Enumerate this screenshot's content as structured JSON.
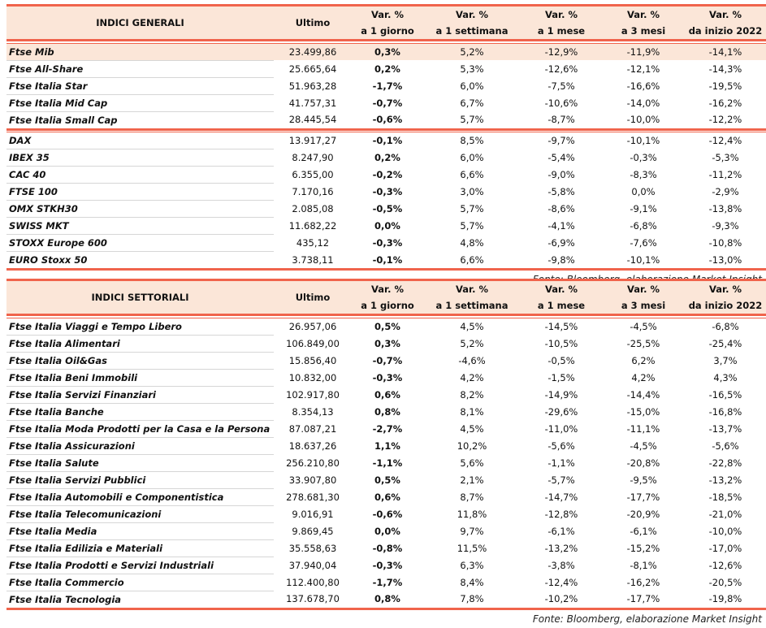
{
  "columns": [
    "Ultimo",
    "Var. %",
    "a 1 giorno",
    "Var. %",
    "a 1 settimana",
    "Var. %",
    "a 1 mese",
    "Var. %",
    "a 3 mesi",
    "Var. %",
    "da inizio 2022"
  ],
  "general": {
    "title": "INDICI GENERALI",
    "groups": [
      [
        [
          "Ftse Mib",
          "23.499,86",
          "0,3%",
          "5,2%",
          "-12,9%",
          "-11,9%",
          "-14,1%"
        ],
        [
          "Ftse All-Share",
          "25.665,64",
          "0,2%",
          "5,3%",
          "-12,6%",
          "-12,1%",
          "-14,3%"
        ],
        [
          "Ftse Italia Star",
          "51.963,28",
          "-1,7%",
          "6,0%",
          "-7,5%",
          "-16,6%",
          "-19,5%"
        ],
        [
          "Ftse Italia Mid Cap",
          "41.757,31",
          "-0,7%",
          "6,7%",
          "-10,6%",
          "-14,0%",
          "-16,2%"
        ],
        [
          "Ftse Italia Small Cap",
          "28.445,54",
          "-0,6%",
          "5,7%",
          "-8,7%",
          "-10,0%",
          "-12,2%"
        ]
      ],
      [
        [
          "DAX",
          "13.917,27",
          "-0,1%",
          "8,5%",
          "-9,7%",
          "-10,1%",
          "-12,4%"
        ],
        [
          "IBEX 35",
          "8.247,90",
          "0,2%",
          "6,0%",
          "-5,4%",
          "-0,3%",
          "-5,3%"
        ],
        [
          "CAC 40",
          "6.355,00",
          "-0,2%",
          "6,6%",
          "-9,0%",
          "-8,3%",
          "-11,2%"
        ],
        [
          "FTSE 100",
          "7.170,16",
          "-0,3%",
          "3,0%",
          "-5,8%",
          "0,0%",
          "-2,9%"
        ],
        [
          "OMX STKH30",
          "2.085,08",
          "-0,5%",
          "5,7%",
          "-8,6%",
          "-9,1%",
          "-13,8%"
        ],
        [
          "SWISS MKT",
          "11.682,22",
          "0,0%",
          "5,7%",
          "-4,1%",
          "-6,8%",
          "-9,3%"
        ],
        [
          "STOXX Europe 600",
          "435,12",
          "-0,3%",
          "4,8%",
          "-6,9%",
          "-7,6%",
          "-10,8%"
        ],
        [
          "EURO Stoxx 50",
          "3.738,11",
          "-0,1%",
          "6,6%",
          "-9,8%",
          "-10,1%",
          "-13,0%"
        ]
      ]
    ],
    "source": "Fonte: Bloomberg, elaborazione Market Insight"
  },
  "sector": {
    "title": "INDICI SETTORIALI",
    "groups": [
      [
        [
          "Ftse Italia Viaggi e Tempo Libero",
          "26.957,06",
          "0,5%",
          "4,5%",
          "-14,5%",
          "-4,5%",
          "-6,8%"
        ],
        [
          "Ftse Italia Alimentari",
          "106.849,00",
          "0,3%",
          "5,2%",
          "-10,5%",
          "-25,5%",
          "-25,4%"
        ],
        [
          "Ftse Italia Oil&Gas",
          "15.856,40",
          "-0,7%",
          "-4,6%",
          "-0,5%",
          "6,2%",
          "3,7%"
        ],
        [
          "Ftse Italia Beni Immobili",
          "10.832,00",
          "-0,3%",
          "4,2%",
          "-1,5%",
          "4,2%",
          "4,3%"
        ],
        [
          "Ftse Italia Servizi Finanziari",
          "102.917,80",
          "0,6%",
          "8,2%",
          "-14,9%",
          "-14,4%",
          "-16,5%"
        ],
        [
          "Ftse Italia Banche",
          "8.354,13",
          "0,8%",
          "8,1%",
          "-29,6%",
          "-15,0%",
          "-16,8%"
        ],
        [
          "Ftse Italia Moda Prodotti per la Casa e la Persona",
          "87.087,21",
          "-2,7%",
          "4,5%",
          "-11,0%",
          "-11,1%",
          "-13,7%"
        ],
        [
          "Ftse Italia Assicurazioni",
          "18.637,26",
          "1,1%",
          "10,2%",
          "-5,6%",
          "-4,5%",
          "-5,6%"
        ],
        [
          "Ftse Italia Salute",
          "256.210,80",
          "-1,1%",
          "5,6%",
          "-1,1%",
          "-20,8%",
          "-22,8%"
        ],
        [
          "Ftse Italia Servizi Pubblici",
          "33.907,80",
          "0,5%",
          "2,1%",
          "-5,7%",
          "-9,5%",
          "-13,2%"
        ],
        [
          "Ftse Italia Automobili e Componentistica",
          "278.681,30",
          "0,6%",
          "8,7%",
          "-14,7%",
          "-17,7%",
          "-18,5%"
        ],
        [
          "Ftse Italia Telecomunicazioni",
          "9.016,91",
          "-0,6%",
          "11,8%",
          "-12,8%",
          "-20,9%",
          "-21,0%"
        ],
        [
          "Ftse Italia Media",
          "9.869,45",
          "0,0%",
          "9,7%",
          "-6,1%",
          "-6,1%",
          "-10,0%"
        ],
        [
          "Ftse Italia Edilizia e Materiali",
          "35.558,63",
          "-0,8%",
          "11,5%",
          "-13,2%",
          "-15,2%",
          "-17,0%"
        ],
        [
          "Ftse Italia Prodotti e Servizi Industriali",
          "37.940,04",
          "-0,3%",
          "6,3%",
          "-3,8%",
          "-8,1%",
          "-12,6%"
        ],
        [
          "Ftse Italia Commercio",
          "112.400,80",
          "-1,7%",
          "8,4%",
          "-12,4%",
          "-16,2%",
          "-20,5%"
        ],
        [
          "Ftse Italia Tecnologia",
          "137.678,70",
          "0,8%",
          "7,8%",
          "-10,2%",
          "-17,7%",
          "-19,8%"
        ]
      ]
    ],
    "source": "Fonte: Bloomberg, elaborazione Market Insight"
  },
  "colors": {
    "accent_line": "#f0644c",
    "header_bg": "#fbe6d8",
    "highlight_row": "#fbe6d8"
  }
}
